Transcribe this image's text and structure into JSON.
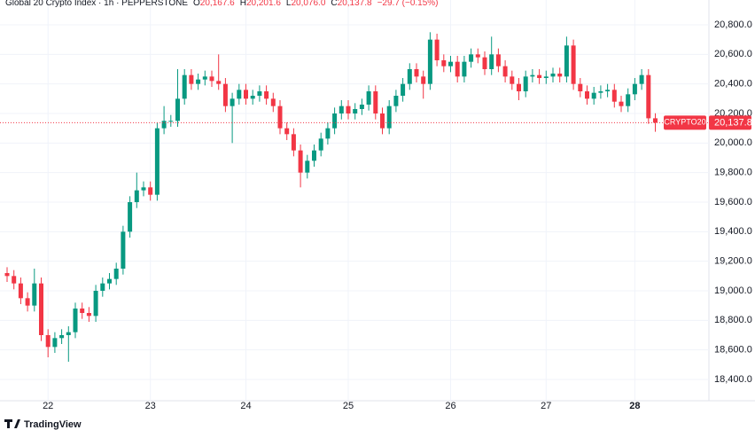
{
  "chart_data": {
    "type": "candlestick",
    "title": "Global 20 Crypto Index · 1h · PEPPERSTONE",
    "legend_items": [
      {
        "key": "O",
        "value": "20,167.6"
      },
      {
        "key": "H",
        "value": "20,201.6"
      },
      {
        "key": "L",
        "value": "20,076.0"
      },
      {
        "key": "C",
        "value": "20,137.8"
      }
    ],
    "change_label": "−29.7 (−0.15%)",
    "symbol": "CRYPTO20",
    "last_price_label": "20,137.8",
    "brand": "TradingView",
    "up_color": "#089981",
    "down_color": "#f23645",
    "categories": [
      null,
      null,
      null,
      null,
      null,
      null,
      "22",
      null,
      null,
      null,
      null,
      null,
      null,
      null,
      null,
      null,
      null,
      null,
      null,
      null,
      null,
      "23",
      null,
      null,
      null,
      null,
      null,
      null,
      null,
      null,
      null,
      null,
      null,
      null,
      null,
      "24",
      null,
      null,
      null,
      null,
      null,
      null,
      null,
      null,
      null,
      null,
      null,
      null,
      null,
      null,
      "25",
      null,
      null,
      null,
      null,
      null,
      null,
      null,
      null,
      null,
      null,
      null,
      null,
      null,
      null,
      "26",
      null,
      null,
      null,
      null,
      null,
      null,
      null,
      null,
      null,
      null,
      null,
      null,
      null,
      "27",
      null,
      null,
      null,
      null,
      null,
      null,
      null,
      null,
      null,
      null,
      null,
      null,
      "28",
      null,
      null,
      null
    ],
    "open": [
      19120,
      19100,
      19050,
      18950,
      18900,
      19050,
      18700,
      18620,
      18680,
      18700,
      18720,
      18880,
      18850,
      18830,
      19000,
      19050,
      19080,
      19150,
      19400,
      19600,
      19680,
      19700,
      19650,
      20100,
      20150,
      20150,
      20300,
      20460,
      20400,
      20430,
      20450,
      20420,
      20400,
      20250,
      20300,
      20360,
      20300,
      20320,
      20350,
      20300,
      20250,
      20100,
      20060,
      19950,
      19800,
      19880,
      19950,
      20030,
      20100,
      20200,
      20250,
      20200,
      20230,
      20260,
      20350,
      20200,
      20100,
      20250,
      20320,
      20400,
      20500,
      20450,
      20400,
      20700,
      20560,
      20520,
      20550,
      20450,
      20550,
      20600,
      20580,
      20500,
      20600,
      20520,
      20450,
      20400,
      20350,
      20450,
      20460,
      20440,
      20450,
      20470,
      20450,
      20660,
      20400,
      20350,
      20300,
      20340,
      20350,
      20360,
      20280,
      20250,
      20330,
      20400,
      20460,
      20167.6
    ],
    "high": [
      19160,
      19140,
      19090,
      18990,
      19150,
      19090,
      18740,
      18720,
      18740,
      18760,
      18920,
      18920,
      18890,
      19040,
      19090,
      19120,
      19190,
      19440,
      19640,
      19800,
      19740,
      19740,
      20140,
      20250,
      20190,
      20500,
      20500,
      20500,
      20470,
      20490,
      20490,
      20600,
      20440,
      20340,
      20400,
      20400,
      20360,
      20390,
      20390,
      20340,
      20290,
      20140,
      20100,
      19990,
      19920,
      19990,
      20070,
      20140,
      20240,
      20290,
      20290,
      20270,
      20300,
      20390,
      20390,
      20240,
      20290,
      20360,
      20440,
      20540,
      20540,
      20490,
      20750,
      20740,
      20600,
      20590,
      20590,
      20590,
      20640,
      20640,
      20620,
      20720,
      20640,
      20560,
      20490,
      20440,
      20490,
      20500,
      20500,
      20490,
      20510,
      20510,
      20720,
      20700,
      20440,
      20390,
      20380,
      20390,
      20400,
      20400,
      20320,
      20370,
      20440,
      20500,
      20500,
      20201.6
    ],
    "low": [
      19060,
      19010,
      18910,
      18860,
      18860,
      18660,
      18550,
      18580,
      18640,
      18520,
      18680,
      18810,
      18790,
      18790,
      18960,
      19010,
      19040,
      19110,
      19360,
      19560,
      19640,
      19610,
      19610,
      20060,
      20110,
      20110,
      20260,
      20360,
      20360,
      20390,
      20380,
      20360,
      20210,
      20000,
      20260,
      20260,
      20260,
      20280,
      20260,
      20210,
      20060,
      20020,
      19910,
      19700,
      19760,
      19840,
      19910,
      19990,
      20060,
      20160,
      20160,
      20160,
      20190,
      20220,
      20160,
      20060,
      20060,
      20210,
      20280,
      20360,
      20410,
      20300,
      20360,
      20520,
      20480,
      20480,
      20410,
      20410,
      20510,
      20540,
      20460,
      20460,
      20480,
      20410,
      20360,
      20290,
      20310,
      20410,
      20400,
      20400,
      20410,
      20410,
      20410,
      20360,
      20310,
      20260,
      20260,
      20300,
      20310,
      20240,
      20210,
      20210,
      20290,
      20360,
      20130,
      20076
    ],
    "close": [
      19100,
      19050,
      18950,
      18900,
      19050,
      18700,
      18620,
      18680,
      18700,
      18720,
      18880,
      18850,
      18830,
      19000,
      19050,
      19080,
      19150,
      19400,
      19600,
      19680,
      19700,
      19650,
      20100,
      20150,
      20150,
      20300,
      20460,
      20400,
      20430,
      20450,
      20420,
      20400,
      20250,
      20300,
      20360,
      20300,
      20320,
      20350,
      20300,
      20250,
      20100,
      20060,
      19950,
      19800,
      19880,
      19950,
      20030,
      20100,
      20200,
      20250,
      20200,
      20230,
      20260,
      20350,
      20200,
      20100,
      20250,
      20320,
      20400,
      20500,
      20450,
      20400,
      20700,
      20560,
      20520,
      20550,
      20450,
      20550,
      20600,
      20580,
      20500,
      20600,
      20520,
      20450,
      20400,
      20350,
      20450,
      20460,
      20440,
      20450,
      20470,
      20450,
      20660,
      20400,
      20350,
      20300,
      20340,
      20350,
      20360,
      20280,
      20250,
      20330,
      20400,
      20460,
      20167.5,
      20137.8
    ],
    "ylim": [
      18256,
      20968
    ],
    "yticks": [
      {
        "value": 18400,
        "label": "18,400.0"
      },
      {
        "value": 18600,
        "label": "18,600.0"
      },
      {
        "value": 18800,
        "label": "18,800.0"
      },
      {
        "value": 19000,
        "label": "19,000.0"
      },
      {
        "value": 19200,
        "label": "19,200.0"
      },
      {
        "value": 19400,
        "label": "19,400.0"
      },
      {
        "value": 19600,
        "label": "19,600.0"
      },
      {
        "value": 19800,
        "label": "19,800.0"
      },
      {
        "value": 20000,
        "label": "20,000.0"
      },
      {
        "value": 20200,
        "label": "20,200.0"
      },
      {
        "value": 20400,
        "label": "20,400.0"
      },
      {
        "value": 20600,
        "label": "20,600.0"
      },
      {
        "value": 20800,
        "label": "20,800.0"
      }
    ],
    "grid": true
  }
}
